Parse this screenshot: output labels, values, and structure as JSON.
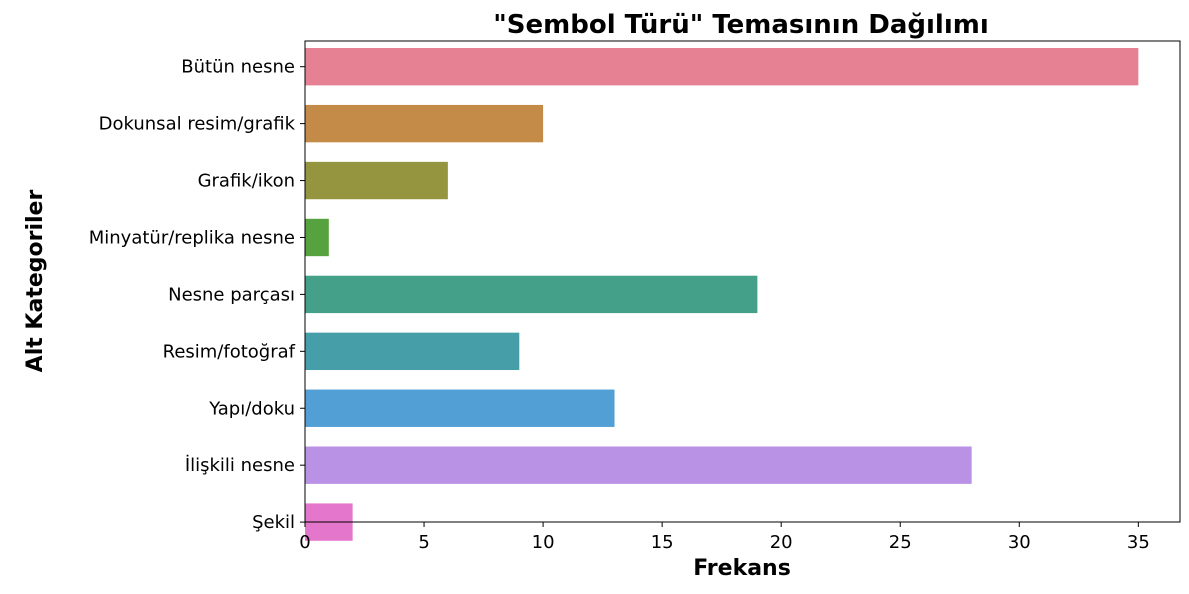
{
  "chart_data": {
    "type": "bar",
    "orientation": "horizontal",
    "title": "\"Sembol Türü\" Temasının Dağılımı",
    "xlabel": "Frekans",
    "ylabel": "Alt Kategoriler",
    "xlim": [
      0,
      36.75
    ],
    "xticks": [
      0,
      5,
      10,
      15,
      20,
      25,
      30,
      35
    ],
    "grid": false,
    "legend": "none",
    "categories": [
      "Bütün nesne",
      "Dokunsal resim/grafik",
      "Grafik/ikon",
      "Minyatür/replika nesne",
      "Nesne parçası",
      "Resim/fotoğraf",
      "Yapı/doku",
      "İlişkili nesne",
      "Şekil"
    ],
    "values": [
      35,
      10,
      6,
      1,
      19,
      9,
      13,
      28,
      2
    ],
    "colors": [
      "#e68193",
      "#c38b47",
      "#95943f",
      "#56a23e",
      "#44a089",
      "#469ea9",
      "#529fd6",
      "#b992e5",
      "#e477cc"
    ]
  }
}
